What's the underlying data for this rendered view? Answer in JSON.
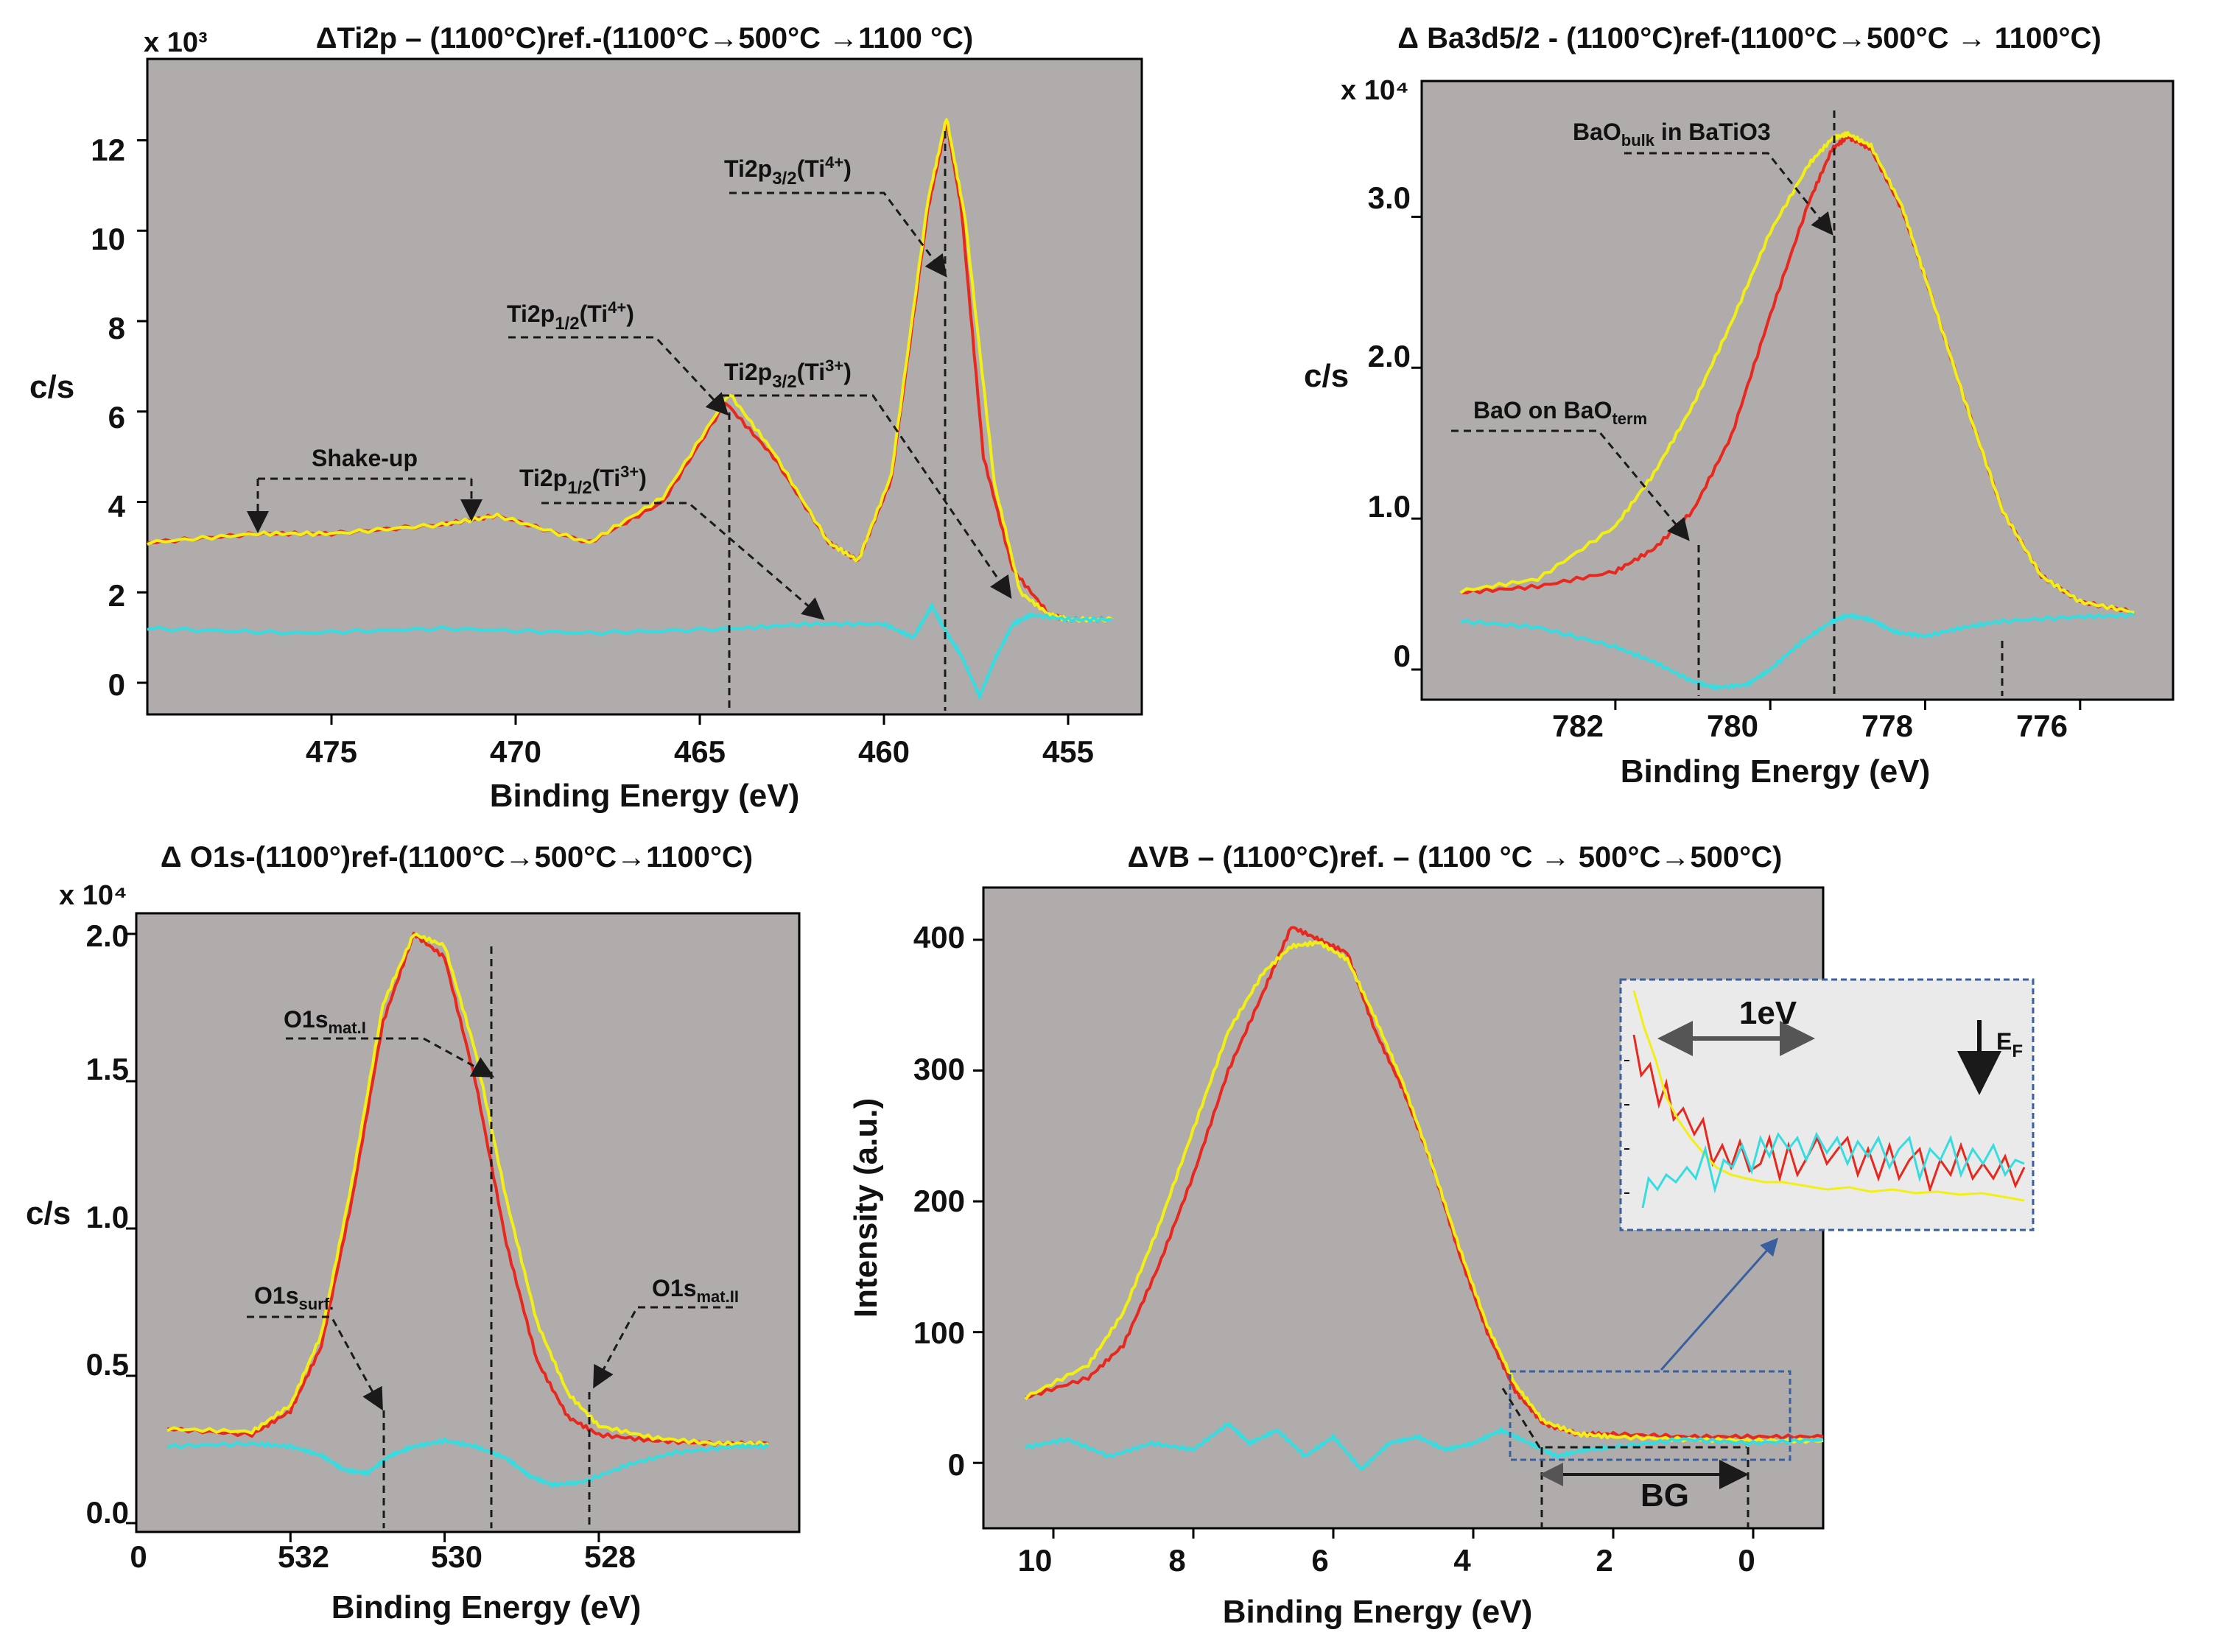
{
  "colors": {
    "background": "#b0acab",
    "ref_series": "#e8281e",
    "cycled_series": "#f2ef14",
    "difference_series": "#35dde0",
    "inset_background": "#eaeaea",
    "inset_border": "#3a5f9f",
    "annotation": "#1a1a1a"
  },
  "chart_data": [
    {
      "id": "ti2p",
      "type": "line",
      "title": "ΔTi2p – (1100°C)ref.-(1100°C→500°C →1100 °C)",
      "xlabel": "Binding Energy (eV)",
      "ylabel": "c/s",
      "y_multiplier": "x 10³",
      "xlim": [
        480,
        453
      ],
      "x_reversed": true,
      "ylim": [
        -0.7,
        13.8
      ],
      "x_ticks": [
        475,
        470,
        465,
        460,
        455
      ],
      "y_ticks": [
        0,
        2,
        4,
        6,
        8,
        10,
        12
      ],
      "series": [
        {
          "color_key": "ref_series",
          "x": [
            480,
            477,
            475,
            472,
            470.5,
            468,
            466,
            464.3,
            463,
            461.5,
            460.7,
            459.8,
            458.8,
            458.3,
            457.9,
            457.3,
            456.5,
            455.5,
            455,
            453.8
          ],
          "y": [
            3.1,
            3.3,
            3.3,
            3.5,
            3.7,
            3.1,
            4.0,
            6.2,
            5.0,
            3.1,
            2.7,
            4.5,
            10.5,
            12.4,
            10.5,
            5.0,
            2.5,
            1.5,
            1.4,
            1.4
          ]
        },
        {
          "color_key": "cycled_series",
          "x": [
            480,
            477,
            475,
            472,
            470.5,
            468,
            466,
            464.2,
            463,
            461.5,
            460.7,
            459.8,
            458.8,
            458.3,
            457.8,
            457.0,
            456.3,
            455.5,
            455,
            453.8
          ],
          "y": [
            3.1,
            3.3,
            3.3,
            3.5,
            3.7,
            3.1,
            4.1,
            6.4,
            5.1,
            3.1,
            2.7,
            4.6,
            10.7,
            12.5,
            10.3,
            4.4,
            2.0,
            1.5,
            1.4,
            1.4
          ]
        },
        {
          "color_key": "difference_series",
          "x": [
            480,
            476,
            472,
            468,
            464,
            462,
            460,
            459.2,
            458.7,
            458.3,
            457.9,
            457.4,
            457.0,
            456.5,
            456.0,
            455,
            453.8
          ],
          "y": [
            1.2,
            1.1,
            1.2,
            1.1,
            1.2,
            1.3,
            1.3,
            1.0,
            1.7,
            1.1,
            0.6,
            -0.3,
            0.5,
            1.3,
            1.5,
            1.4,
            1.4
          ]
        }
      ],
      "annotations": [
        {
          "text": "Shake-up"
        },
        {
          "text": "Ti2p",
          "sub": "1/2",
          "tail": "(Ti",
          "sup": "4+",
          "end": ")"
        },
        {
          "text": "Ti2p",
          "sub": "3/2",
          "tail": "(Ti",
          "sup": "4+",
          "end": ")"
        },
        {
          "text": "Ti2p",
          "sub": "3/2",
          "tail": "(Ti",
          "sup": "3+",
          "end": ")"
        },
        {
          "text": "Ti2p",
          "sub": "1/2",
          "tail": "(Ti",
          "sup": "3+",
          "end": ")"
        }
      ]
    },
    {
      "id": "ba3d",
      "type": "line",
      "title": "Δ Ba3d5/2 - (1100°C)ref-(1100°C→500°C → 1100°C)",
      "xlabel": "Binding Energy (eV)",
      "ylabel": "c/s",
      "y_multiplier": "x 10⁴",
      "xlim": [
        784.5,
        774.8
      ],
      "x_reversed": true,
      "ylim": [
        -0.2,
        3.9
      ],
      "x_ticks": [
        782,
        780,
        778,
        776
      ],
      "y_ticks": [
        0,
        1.0,
        2.0,
        3.0
      ],
      "y_tick_labels": [
        "0",
        "1.0",
        "2.0",
        "3.0"
      ],
      "series": [
        {
          "color_key": "ref_series",
          "x": [
            784,
            783,
            782,
            781.5,
            781,
            780.5,
            780,
            779.5,
            779.2,
            779.0,
            778.7,
            778.3,
            778,
            777.5,
            777,
            776.5,
            776,
            775.3
          ],
          "y": [
            0.51,
            0.55,
            0.65,
            0.8,
            1.05,
            1.55,
            2.35,
            3.1,
            3.45,
            3.53,
            3.45,
            3.05,
            2.6,
            1.8,
            1.05,
            0.62,
            0.45,
            0.38
          ]
        },
        {
          "color_key": "cycled_series",
          "x": [
            784,
            783,
            782,
            781.5,
            781,
            780.5,
            780,
            779.5,
            779.2,
            779.0,
            778.7,
            778.3,
            778,
            777.5,
            777,
            776.5,
            776,
            775.3
          ],
          "y": [
            0.52,
            0.6,
            0.95,
            1.3,
            1.75,
            2.3,
            2.9,
            3.35,
            3.52,
            3.55,
            3.47,
            3.07,
            2.6,
            1.8,
            1.05,
            0.62,
            0.45,
            0.38
          ]
        },
        {
          "color_key": "difference_series",
          "x": [
            784,
            783,
            782,
            781.5,
            781,
            780.7,
            780.3,
            780,
            779.6,
            779.2,
            779.0,
            778.7,
            778.4,
            778,
            777.5,
            777,
            776,
            775.3
          ],
          "y": [
            0.32,
            0.28,
            0.15,
            0.05,
            -0.08,
            -0.12,
            -0.1,
            0.0,
            0.18,
            0.32,
            0.36,
            0.33,
            0.25,
            0.22,
            0.28,
            0.32,
            0.35,
            0.36
          ]
        }
      ],
      "annotations": [
        {
          "text": "BaO",
          "sub": "bulk",
          "tail": " in BaTiO3"
        },
        {
          "text": "BaO on BaO",
          "sub": "term"
        }
      ]
    },
    {
      "id": "o1s",
      "type": "line",
      "title": "Δ O1s-(1100°)ref-(1100°C→500°C→1100°C)",
      "xlabel": "Binding Energy (eV)",
      "ylabel": "c/s",
      "y_multiplier": "x 10⁴",
      "xlim": [
        534.0,
        525.4
      ],
      "x_reversed": true,
      "ylim": [
        -0.03,
        2.07
      ],
      "x_ticks": [
        532,
        530,
        528
      ],
      "y_ticks": [
        0,
        0.5,
        1.0,
        1.5,
        2.0
      ],
      "y_tick_labels": [
        "0.0",
        "0.5",
        "1.0",
        "1.5",
        "2.0"
      ],
      "x_origin_label": "0",
      "series": [
        {
          "color_key": "ref_series",
          "x": [
            533.6,
            532.5,
            532,
            531.6,
            531.2,
            530.8,
            530.4,
            530.0,
            529.6,
            529.2,
            528.8,
            528.4,
            528,
            527.3,
            526.5,
            525.8
          ],
          "y": [
            0.32,
            0.3,
            0.38,
            0.6,
            1.1,
            1.7,
            2.0,
            1.92,
            1.5,
            0.95,
            0.55,
            0.36,
            0.3,
            0.28,
            0.27,
            0.27
          ]
        },
        {
          "color_key": "cycled_series",
          "x": [
            533.6,
            532.5,
            532,
            531.6,
            531.2,
            530.8,
            530.4,
            530.0,
            529.6,
            529.2,
            528.8,
            528.4,
            528,
            527.3,
            526.5,
            525.8
          ],
          "y": [
            0.32,
            0.31,
            0.4,
            0.64,
            1.16,
            1.76,
            2.0,
            1.96,
            1.6,
            1.1,
            0.68,
            0.44,
            0.33,
            0.29,
            0.27,
            0.27
          ]
        },
        {
          "color_key": "difference_series",
          "x": [
            533.6,
            532.5,
            532,
            531.6,
            531.3,
            531.0,
            530.7,
            530.4,
            530.0,
            529.6,
            529.2,
            528.9,
            528.6,
            528.2,
            527.6,
            527,
            526.2,
            525.8
          ],
          "y": [
            0.26,
            0.27,
            0.26,
            0.23,
            0.18,
            0.17,
            0.23,
            0.26,
            0.28,
            0.26,
            0.22,
            0.16,
            0.13,
            0.14,
            0.2,
            0.24,
            0.26,
            0.26
          ]
        }
      ],
      "annotations": [
        {
          "text": "O1s",
          "sub": "mat.I"
        },
        {
          "text": "O1s",
          "sub": "surf."
        },
        {
          "text": "O1s",
          "sub": "mat.II"
        }
      ]
    },
    {
      "id": "vb",
      "type": "line",
      "title": "ΔVB – (1100°C)ref. – (1100 °C → 500°C→500°C)",
      "xlabel": "Binding Energy (eV)",
      "ylabel": "Intensity (a.u.)",
      "xlim": [
        11.0,
        -1.0
      ],
      "x_reversed": true,
      "ylim": [
        -50,
        440
      ],
      "x_ticks": [
        10,
        8,
        6,
        4,
        2,
        0
      ],
      "y_ticks": [
        0,
        100,
        200,
        300,
        400
      ],
      "series": [
        {
          "color_key": "ref_series",
          "x": [
            10.4,
            9.5,
            9,
            8.5,
            8,
            7.5,
            7,
            6.6,
            6.2,
            5.8,
            5.4,
            5.0,
            4.6,
            4.2,
            3.8,
            3.4,
            3.0,
            2.5,
            2,
            1,
            0,
            -1
          ],
          "y": [
            50,
            65,
            90,
            150,
            220,
            300,
            360,
            410,
            400,
            390,
            330,
            285,
            230,
            160,
            100,
            55,
            30,
            22,
            22,
            20,
            20,
            20
          ]
        },
        {
          "color_key": "cycled_series",
          "x": [
            10.4,
            9.5,
            9,
            8.5,
            8,
            7.5,
            7,
            6.6,
            6.2,
            5.8,
            5.4,
            5.0,
            4.6,
            4.2,
            3.8,
            3.4,
            3.0,
            2.5,
            2,
            1,
            0,
            -1
          ],
          "y": [
            50,
            75,
            115,
            180,
            255,
            330,
            375,
            395,
            398,
            385,
            340,
            290,
            230,
            165,
            105,
            60,
            32,
            22,
            20,
            18,
            17,
            17
          ]
        },
        {
          "color_key": "difference_series",
          "x": [
            10.4,
            9.8,
            9.2,
            8.6,
            8.0,
            7.5,
            7.2,
            6.8,
            6.4,
            6.0,
            5.6,
            5.2,
            4.8,
            4.4,
            4.0,
            3.6,
            3.2,
            2.8,
            2.4,
            2,
            1,
            0,
            -1
          ],
          "y": [
            12,
            18,
            5,
            15,
            10,
            30,
            15,
            25,
            5,
            20,
            -5,
            15,
            20,
            10,
            15,
            25,
            15,
            5,
            10,
            12,
            18,
            15,
            18
          ]
        }
      ],
      "annotations": [
        {
          "text": "BG"
        },
        {
          "text": "1eV"
        },
        {
          "text": "E",
          "sub": "F"
        }
      ]
    }
  ]
}
